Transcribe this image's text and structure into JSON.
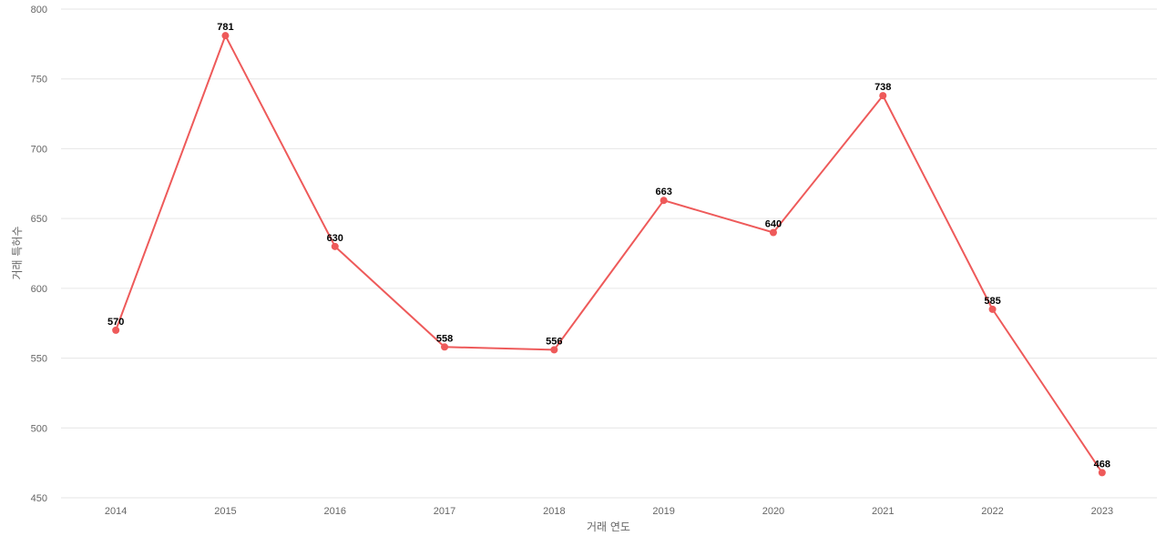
{
  "chart_data": {
    "type": "line",
    "categories": [
      "2014",
      "2015",
      "2016",
      "2017",
      "2018",
      "2019",
      "2020",
      "2021",
      "2022",
      "2023"
    ],
    "series": [
      {
        "values": [
          570,
          781,
          630,
          558,
          556,
          663,
          640,
          738,
          585,
          468
        ],
        "color": "#ee5a5a"
      }
    ],
    "xlabel": "거래 연도",
    "ylabel": "거래 특허수",
    "ylim": [
      450,
      800
    ],
    "yticks": [
      450,
      500,
      550,
      600,
      650,
      700,
      750,
      800
    ],
    "grid": true,
    "legend": "none",
    "data_labels": true
  }
}
